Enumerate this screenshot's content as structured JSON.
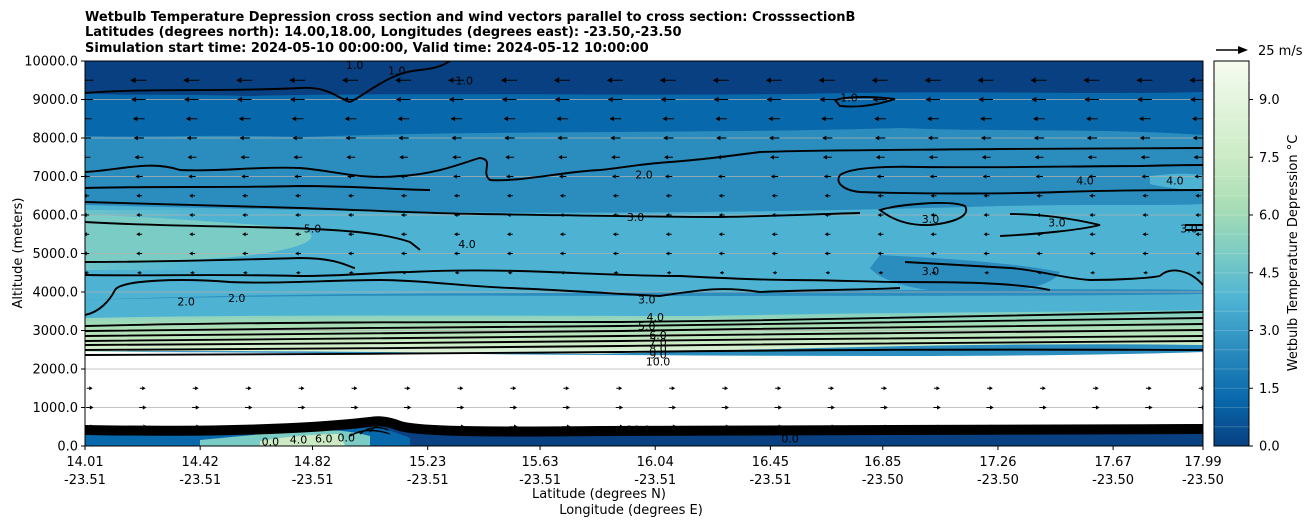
{
  "chart_data": {
    "type": "heatmap",
    "title": [
      "Wetbulb Temperature Depression cross section and wind vectors parallel to cross section: CrosssectionB",
      "Latitudes (degrees north): 14.00,18.00, Longitudes (degrees east): -23.50,-23.50",
      "Simulation start time: 2024-05-10 00:00:00, Valid time: 2024-05-12 10:00:00"
    ],
    "xlabel": [
      "Latitude (degrees N)",
      "Longitude (degrees E)"
    ],
    "ylabel": "Altitude (meters)",
    "x_ticks": [
      {
        "lat": "14.01",
        "lon": "-23.51"
      },
      {
        "lat": "14.42",
        "lon": "-23.51"
      },
      {
        "lat": "14.82",
        "lon": "-23.51"
      },
      {
        "lat": "15.23",
        "lon": "-23.51"
      },
      {
        "lat": "15.63",
        "lon": "-23.51"
      },
      {
        "lat": "16.04",
        "lon": "-23.51"
      },
      {
        "lat": "16.45",
        "lon": "-23.51"
      },
      {
        "lat": "16.85",
        "lon": "-23.50"
      },
      {
        "lat": "17.26",
        "lon": "-23.50"
      },
      {
        "lat": "17.67",
        "lon": "-23.50"
      },
      {
        "lat": "17.99",
        "lon": "-23.50"
      }
    ],
    "xlim": [
      14.01,
      17.99
    ],
    "ylim": [
      0,
      10000
    ],
    "y_ticks": [
      "0.0",
      "1000.0",
      "2000.0",
      "3000.0",
      "4000.0",
      "5000.0",
      "6000.0",
      "7000.0",
      "8000.0",
      "9000.0",
      "10000.0"
    ],
    "grid": "horizontal",
    "colorbar": {
      "label": "Wetbulb Temperature Depression °C",
      "ticks": [
        "0.0",
        "1.5",
        "3.0",
        "4.5",
        "6.0",
        "7.5",
        "9.0"
      ],
      "range": [
        0,
        10
      ],
      "colormap": "GnBu (reversed)",
      "stops": [
        "#084081",
        "#0868ac",
        "#2b8cbe",
        "#4eb3d3",
        "#7bccc4",
        "#a8ddb5",
        "#ccebc5",
        "#e0f3db",
        "#f7fcf0"
      ]
    },
    "quiver_key": {
      "label": "25 m/s",
      "speed": 25
    },
    "wind_rows": [
      {
        "altitude": 9500,
        "speed": 9,
        "direction": "left"
      },
      {
        "altitude": 9000,
        "speed": 8,
        "direction": "left"
      },
      {
        "altitude": 8500,
        "speed": 6,
        "direction": "left"
      },
      {
        "altitude": 8000,
        "speed": 5,
        "direction": "left"
      },
      {
        "altitude": 7500,
        "speed": 4,
        "direction": "left"
      },
      {
        "altitude": 7000,
        "speed": 3,
        "direction": "left"
      },
      {
        "altitude": 6500,
        "speed": 2,
        "direction": "left"
      },
      {
        "altitude": 6000,
        "speed": 2,
        "direction": "left"
      },
      {
        "altitude": 5500,
        "speed": 2,
        "direction": "left"
      },
      {
        "altitude": 5000,
        "speed": 2,
        "direction": "left"
      },
      {
        "altitude": 4500,
        "speed": 1,
        "direction": "left"
      },
      {
        "altitude": 1500,
        "speed": 2,
        "direction": "right"
      },
      {
        "altitude": 1000,
        "speed": 3,
        "direction": "right"
      },
      {
        "altitude": 500,
        "speed": 4,
        "direction": "right"
      }
    ],
    "contour_labels": [
      {
        "text": "1.0",
        "lat": 14.97,
        "alt": 9900
      },
      {
        "text": "1.0",
        "lat": 15.12,
        "alt": 9750
      },
      {
        "text": "1.0",
        "lat": 15.36,
        "alt": 9500
      },
      {
        "text": "1.0",
        "lat": 16.73,
        "alt": 9050
      },
      {
        "text": "2.0",
        "lat": 16.0,
        "alt": 7050
      },
      {
        "text": "4.0",
        "lat": 17.57,
        "alt": 6900
      },
      {
        "text": "4.0",
        "lat": 17.89,
        "alt": 6900
      },
      {
        "text": "3.0",
        "lat": 15.97,
        "alt": 5950
      },
      {
        "text": "3.0",
        "lat": 17.02,
        "alt": 5900
      },
      {
        "text": "3.0",
        "lat": 17.47,
        "alt": 5800
      },
      {
        "text": "3.0",
        "lat": 17.94,
        "alt": 5650
      },
      {
        "text": "5.0",
        "lat": 14.82,
        "alt": 5650
      },
      {
        "text": "4.0",
        "lat": 15.37,
        "alt": 5250
      },
      {
        "text": "3.0",
        "lat": 17.02,
        "alt": 4550
      },
      {
        "text": "2.0",
        "lat": 14.55,
        "alt": 3850
      },
      {
        "text": "2.0",
        "lat": 14.37,
        "alt": 3750
      },
      {
        "text": "3.0",
        "lat": 16.01,
        "alt": 3800
      },
      {
        "text": "4.0",
        "lat": 16.04,
        "alt": 3350
      },
      {
        "text": "5.0",
        "lat": 16.01,
        "alt": 3120
      },
      {
        "text": "6.0",
        "lat": 16.05,
        "alt": 2880
      },
      {
        "text": "7.0",
        "lat": 16.05,
        "alt": 2700
      },
      {
        "text": "8.0",
        "lat": 16.05,
        "alt": 2530
      },
      {
        "text": "9.0",
        "lat": 16.05,
        "alt": 2380
      },
      {
        "text": "10.0",
        "lat": 16.05,
        "alt": 2200
      },
      {
        "text": "10.0",
        "lat": 15.98,
        "alt": 430
      },
      {
        "text": "0.0",
        "lat": 16.52,
        "alt": 200
      },
      {
        "text": "4.0",
        "lat": 14.77,
        "alt": 170
      },
      {
        "text": "0.0",
        "lat": 14.94,
        "alt": 220
      },
      {
        "text": "6.0",
        "lat": 14.86,
        "alt": 200
      },
      {
        "text": "0.0",
        "lat": 14.67,
        "alt": 120
      }
    ]
  }
}
